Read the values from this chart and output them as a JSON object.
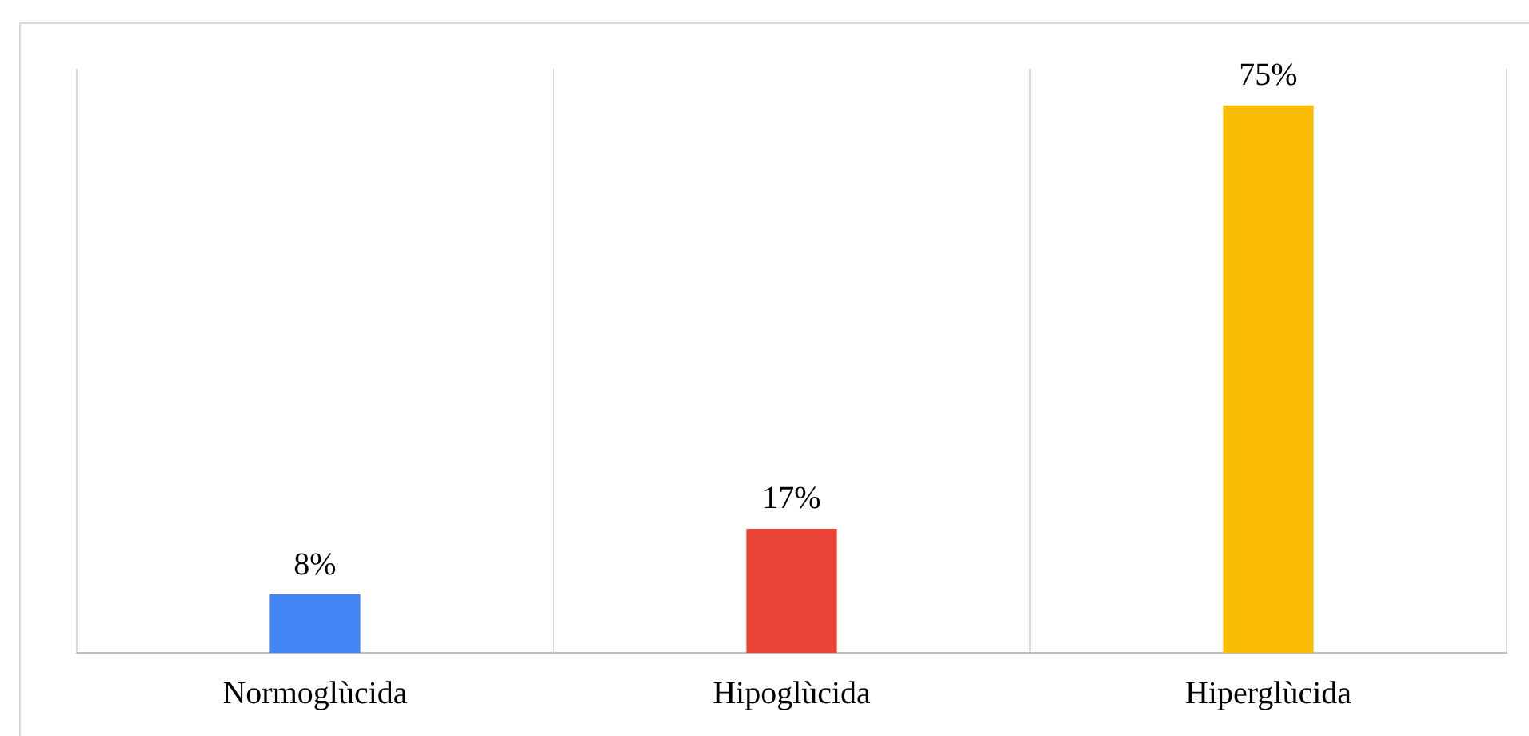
{
  "chart_data": {
    "type": "bar",
    "categories": [
      "Normoglùcida",
      "Hipoglùcida",
      "Hiperglùcida"
    ],
    "values": [
      8,
      17,
      75
    ],
    "colors": [
      "#4285f4",
      "#ea4335",
      "#fbbc04"
    ],
    "value_labels": [
      "8%",
      "17%",
      "75%"
    ],
    "ylim": [
      0,
      80
    ],
    "tick_labels": "x",
    "grid": "x",
    "legend": false
  }
}
